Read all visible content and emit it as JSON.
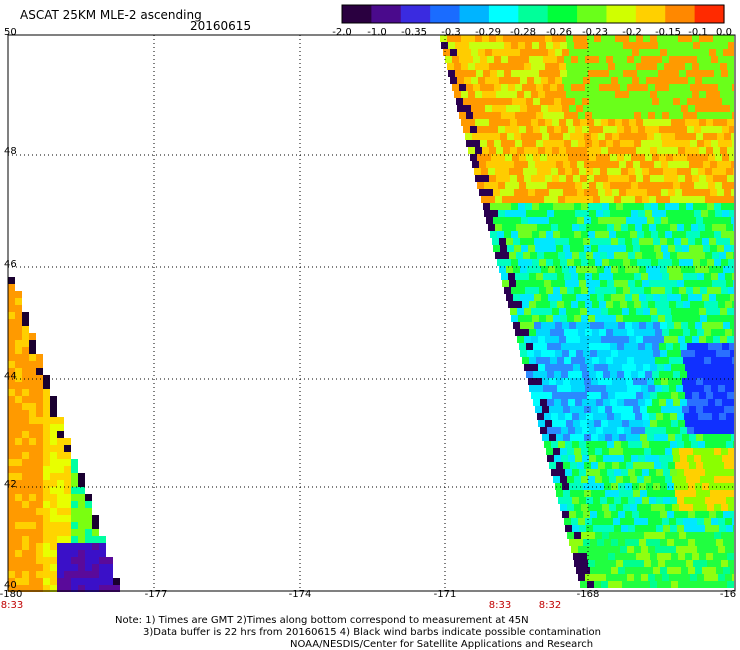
{
  "header": {
    "title": "ASCAT 25KM MLE-2 ascending",
    "date": "20160615"
  },
  "colorbar": {
    "labels": [
      "-2.0",
      "-1.0",
      "-0.35",
      "-0.3",
      "-0.29",
      "-0.28",
      "-0.26",
      "-0.23",
      "-0.2",
      "-0.15",
      "-0.1",
      "0.0"
    ],
    "colors": [
      "#2a0040",
      "#4a0a8c",
      "#3a2be0",
      "#1a6cff",
      "#00b4ff",
      "#00ffff",
      "#00ff9a",
      "#00ff3a",
      "#6aff1a",
      "#d0ff00",
      "#ffd000",
      "#ff8800",
      "#ff2a00"
    ]
  },
  "axes": {
    "lat_labels": [
      "50",
      "48",
      "46",
      "44",
      "42",
      "40"
    ],
    "lon_labels": [
      "-180",
      "-177",
      "-174",
      "-171",
      "-168",
      "-16"
    ]
  },
  "swath_times": [
    "8:33",
    "8:33",
    "8:32"
  ],
  "footer": {
    "note_line1": "Note: 1) Times are GMT 2)Times along bottom correspond to measurement at 45N",
    "note_line2": "3)Data buffer is 22 hrs from 20160615 4) Black wind barbs indicate possible contamination",
    "credit": "NOAA/NESDIS/Center for Satellite Applications and Research"
  },
  "map_data": {
    "lat_range": [
      40,
      50
    ],
    "lon_range": [
      -180,
      -165
    ],
    "gridlines": "dotted"
  }
}
